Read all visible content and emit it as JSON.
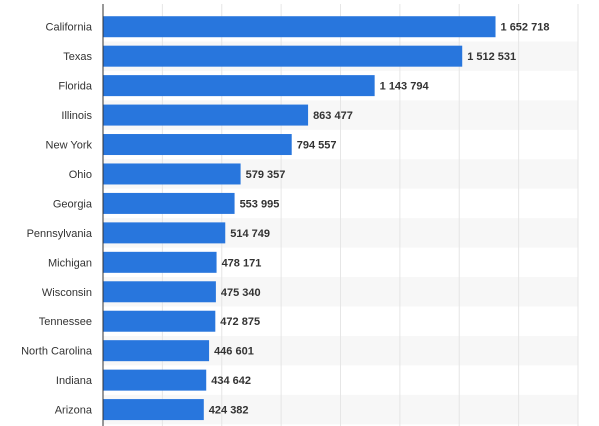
{
  "chart_data": {
    "type": "bar",
    "orientation": "horizontal",
    "categories": [
      "California",
      "Texas",
      "Florida",
      "Illinois",
      "New York",
      "Ohio",
      "Georgia",
      "Pennsylvania",
      "Michigan",
      "Wisconsin",
      "Tennessee",
      "North Carolina",
      "Indiana",
      "Arizona"
    ],
    "values": [
      1652718,
      1512531,
      1143794,
      863477,
      794557,
      579357,
      553995,
      514749,
      478171,
      475340,
      472875,
      446601,
      434642,
      424382
    ],
    "value_labels": [
      "1 652 718",
      "1 512 531",
      "1 143 794",
      "863 477",
      "794 557",
      "579 357",
      "553 995",
      "514 749",
      "478 171",
      "475 340",
      "472 875",
      "446 601",
      "434 642",
      "424 382"
    ],
    "title": "",
    "xlabel": "",
    "ylabel": "",
    "xlim": [
      0,
      2000000
    ],
    "grid": true,
    "bar_color": "#2876dd",
    "band_color": "#f7f7f7",
    "grid_color": "#e6e6e6"
  }
}
